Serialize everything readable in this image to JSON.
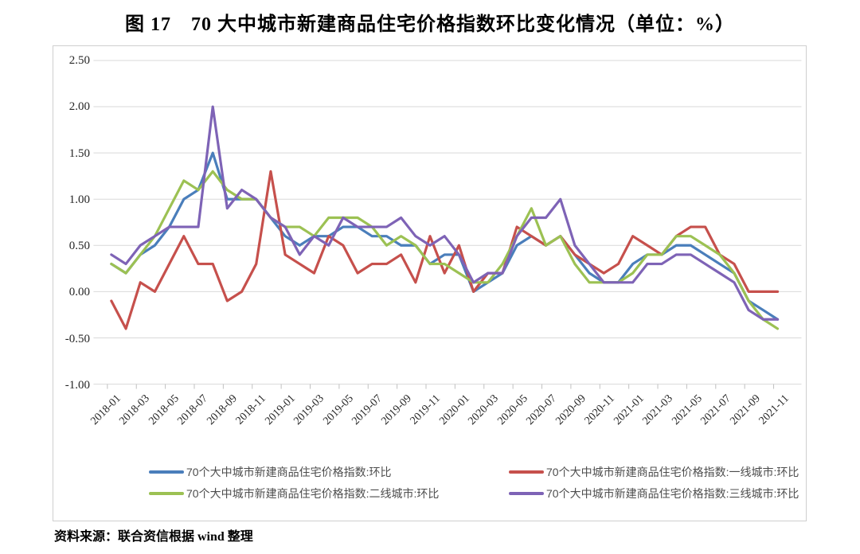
{
  "title": "图 17　70 大中城市新建商品住宅价格指数环比变化情况（单位：%）",
  "source": "资料来源：联合资信根据 wind 整理",
  "chart_data": {
    "type": "line",
    "title": "图 17　70 大中城市新建商品住宅价格指数环比变化情况（单位：%）",
    "unit": "%",
    "grid": "horizontal",
    "legend_position": "bottom",
    "ylim": [
      -1.0,
      2.5
    ],
    "yticks": [
      "2.50",
      "2.00",
      "1.50",
      "1.00",
      "0.50",
      "0.00",
      "-0.50",
      "-1.00"
    ],
    "x_label_every": 2,
    "x": [
      "2018-01",
      "2018-02",
      "2018-03",
      "2018-04",
      "2018-05",
      "2018-06",
      "2018-07",
      "2018-08",
      "2018-09",
      "2018-10",
      "2018-11",
      "2018-12",
      "2019-01",
      "2019-02",
      "2019-03",
      "2019-04",
      "2019-05",
      "2019-06",
      "2019-07",
      "2019-08",
      "2019-09",
      "2019-10",
      "2019-11",
      "2019-12",
      "2020-01",
      "2020-02",
      "2020-03",
      "2020-04",
      "2020-05",
      "2020-06",
      "2020-07",
      "2020-08",
      "2020-09",
      "2020-10",
      "2020-11",
      "2020-12",
      "2021-01",
      "2021-02",
      "2021-03",
      "2021-04",
      "2021-05",
      "2021-06",
      "2021-07",
      "2021-08",
      "2021-09",
      "2021-10",
      "2021-11"
    ],
    "series": [
      {
        "name": "70个大中城市新建商品住宅价格指数:环比",
        "color": "#4A7EBB",
        "values": [
          0.3,
          0.2,
          0.4,
          0.5,
          0.7,
          1.0,
          1.1,
          1.5,
          1.0,
          1.0,
          1.0,
          0.8,
          0.6,
          0.5,
          0.6,
          0.6,
          0.7,
          0.7,
          0.6,
          0.6,
          0.5,
          0.5,
          0.3,
          0.4,
          0.4,
          0.0,
          0.1,
          0.2,
          0.5,
          0.6,
          0.5,
          0.6,
          0.4,
          0.2,
          0.1,
          0.1,
          0.3,
          0.4,
          0.4,
          0.5,
          0.5,
          0.4,
          0.3,
          0.2,
          -0.1,
          -0.2,
          -0.3
        ]
      },
      {
        "name": "70个大中城市新建商品住宅价格指数:一线城市:环比",
        "color": "#C6504C",
        "values": [
          -0.1,
          -0.4,
          0.1,
          0.0,
          0.3,
          0.6,
          0.3,
          0.3,
          -0.1,
          0.0,
          0.3,
          1.3,
          0.4,
          0.3,
          0.2,
          0.6,
          0.5,
          0.2,
          0.3,
          0.3,
          0.4,
          0.1,
          0.6,
          0.2,
          0.5,
          0.0,
          0.2,
          0.2,
          0.7,
          0.6,
          0.5,
          0.6,
          0.4,
          0.3,
          0.2,
          0.3,
          0.6,
          0.5,
          0.4,
          0.6,
          0.7,
          0.7,
          0.4,
          0.3,
          0.0,
          0.0,
          0.0
        ]
      },
      {
        "name": "70个大中城市新建商品住宅价格指数:二线城市:环比",
        "color": "#9CC153",
        "values": [
          0.3,
          0.2,
          0.4,
          0.6,
          0.9,
          1.2,
          1.1,
          1.3,
          1.1,
          1.0,
          1.0,
          0.8,
          0.7,
          0.7,
          0.6,
          0.8,
          0.8,
          0.8,
          0.7,
          0.5,
          0.6,
          0.5,
          0.3,
          0.3,
          0.2,
          0.1,
          0.1,
          0.3,
          0.6,
          0.9,
          0.5,
          0.6,
          0.3,
          0.1,
          0.1,
          0.1,
          0.2,
          0.4,
          0.4,
          0.6,
          0.6,
          0.5,
          0.4,
          0.2,
          -0.1,
          -0.3,
          -0.4
        ]
      },
      {
        "name": "70个大中城市新建商品住宅价格指数:三线城市:环比",
        "color": "#7E63B6",
        "values": [
          0.4,
          0.3,
          0.5,
          0.6,
          0.7,
          0.7,
          0.7,
          2.0,
          0.9,
          1.1,
          1.0,
          0.8,
          0.7,
          0.4,
          0.6,
          0.5,
          0.8,
          0.7,
          0.7,
          0.7,
          0.8,
          0.6,
          0.5,
          0.6,
          0.4,
          0.1,
          0.2,
          0.2,
          0.6,
          0.8,
          0.8,
          1.0,
          0.5,
          0.3,
          0.1,
          0.1,
          0.1,
          0.3,
          0.3,
          0.4,
          0.4,
          0.3,
          0.2,
          0.1,
          -0.2,
          -0.3,
          -0.3
        ]
      }
    ],
    "colors": {
      "gridline": "#d9d9d9",
      "axis": "#c0c0c0",
      "tick_text": "#262626",
      "legend_text": "#4d4d4d"
    }
  }
}
